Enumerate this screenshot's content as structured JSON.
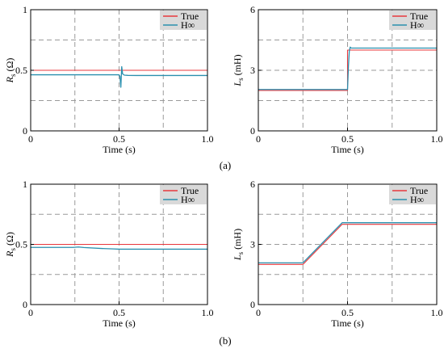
{
  "chart_data": [
    {
      "type": "line",
      "panel": "a",
      "ylabel_main": "R",
      "ylabel_sub": "s",
      "ylabel_unit": " (Ω)",
      "xlabel": "Time (s)",
      "xlim": [
        0,
        1
      ],
      "ylim": [
        0,
        1
      ],
      "xticks": [
        0,
        0.5,
        1.0
      ],
      "xtick_labels": [
        "0",
        "0.5",
        "1.0"
      ],
      "yticks": [
        0,
        0.5,
        1
      ],
      "ytick_labels": [
        "0",
        "0.5",
        "1"
      ],
      "grid_x": [
        0.25,
        0.5,
        0.75
      ],
      "grid_y": [
        0.25,
        0.5,
        0.75
      ],
      "grid": true,
      "legend_position": "top-right",
      "series": [
        {
          "name": "True",
          "color": "#e8383d",
          "x": [
            0,
            1
          ],
          "y": [
            0.5,
            0.5
          ]
        },
        {
          "name": "H∞",
          "color": "#2a8fae",
          "x": [
            0,
            0.49,
            0.5,
            0.505,
            0.51,
            0.515,
            0.52,
            0.53,
            0.55,
            0.6,
            1.0
          ],
          "y": [
            0.463,
            0.463,
            0.462,
            0.45,
            0.36,
            0.53,
            0.47,
            0.46,
            0.458,
            0.457,
            0.457
          ]
        }
      ]
    },
    {
      "type": "line",
      "panel": "a",
      "ylabel_main": "L",
      "ylabel_sub": "s",
      "ylabel_unit": " (mH)",
      "xlabel": "Time (s)",
      "xlim": [
        0,
        1
      ],
      "ylim": [
        0,
        6
      ],
      "xticks": [
        0,
        0.5,
        1.0
      ],
      "xtick_labels": [
        "0",
        "0.5",
        "1.0"
      ],
      "yticks": [
        0,
        3,
        6
      ],
      "ytick_labels": [
        "0",
        "3",
        "6"
      ],
      "grid_x": [
        0.25,
        0.5,
        0.75
      ],
      "grid_y": [
        1.5,
        3,
        4.5
      ],
      "grid": true,
      "legend_position": "top-right",
      "series": [
        {
          "name": "True",
          "color": "#e8383d",
          "x": [
            0,
            0.5,
            0.5,
            1
          ],
          "y": [
            2,
            2,
            4,
            4
          ]
        },
        {
          "name": "H∞",
          "color": "#2a8fae",
          "x": [
            0,
            0.5,
            0.505,
            0.51,
            0.515,
            0.52,
            0.53,
            1.0
          ],
          "y": [
            2.05,
            2.05,
            3.2,
            3.95,
            4.15,
            4.1,
            4.1,
            4.1
          ]
        }
      ]
    },
    {
      "type": "line",
      "panel": "b",
      "ylabel_main": "R",
      "ylabel_sub": "s",
      "ylabel_unit": " (Ω)",
      "xlabel": "Time (s)",
      "xlim": [
        0,
        1
      ],
      "ylim": [
        0,
        1
      ],
      "xticks": [
        0,
        0.5,
        1.0
      ],
      "xtick_labels": [
        "0",
        "0.5",
        "1.0"
      ],
      "yticks": [
        0,
        0.5,
        1
      ],
      "ytick_labels": [
        "0",
        "0.5",
        "1"
      ],
      "grid_x": [
        0.25,
        0.5,
        0.75
      ],
      "grid_y": [
        0.25,
        0.5,
        0.75
      ],
      "grid": true,
      "legend_position": "top-right",
      "series": [
        {
          "name": "True",
          "color": "#e8383d",
          "x": [
            0,
            1
          ],
          "y": [
            0.5,
            0.5
          ]
        },
        {
          "name": "H∞",
          "color": "#2a8fae",
          "x": [
            0,
            0.24,
            0.27,
            0.3,
            0.4,
            0.47,
            0.5,
            1.0
          ],
          "y": [
            0.475,
            0.475,
            0.478,
            0.474,
            0.466,
            0.462,
            0.46,
            0.46
          ]
        }
      ]
    },
    {
      "type": "line",
      "panel": "b",
      "ylabel_main": "L",
      "ylabel_sub": "s",
      "ylabel_unit": " (mH)",
      "xlabel": "Time (s)",
      "xlim": [
        0,
        1
      ],
      "ylim": [
        0,
        6
      ],
      "xticks": [
        0,
        0.5,
        1.0
      ],
      "xtick_labels": [
        "0",
        "0.5",
        "1.0"
      ],
      "yticks": [
        0,
        3,
        6
      ],
      "ytick_labels": [
        "0",
        "3",
        "6"
      ],
      "grid_x": [
        0.25,
        0.5,
        0.75
      ],
      "grid_y": [
        1.5,
        3,
        4.5
      ],
      "grid": true,
      "legend_position": "top-right",
      "series": [
        {
          "name": "True",
          "color": "#e8383d",
          "x": [
            0,
            0.25,
            0.47,
            1
          ],
          "y": [
            2,
            2,
            4,
            4
          ]
        },
        {
          "name": "H∞",
          "color": "#2a8fae",
          "x": [
            0,
            0.25,
            0.47,
            1
          ],
          "y": [
            2.08,
            2.08,
            4.08,
            4.08
          ]
        }
      ]
    }
  ],
  "captions": [
    "(a)",
    "(b)"
  ]
}
